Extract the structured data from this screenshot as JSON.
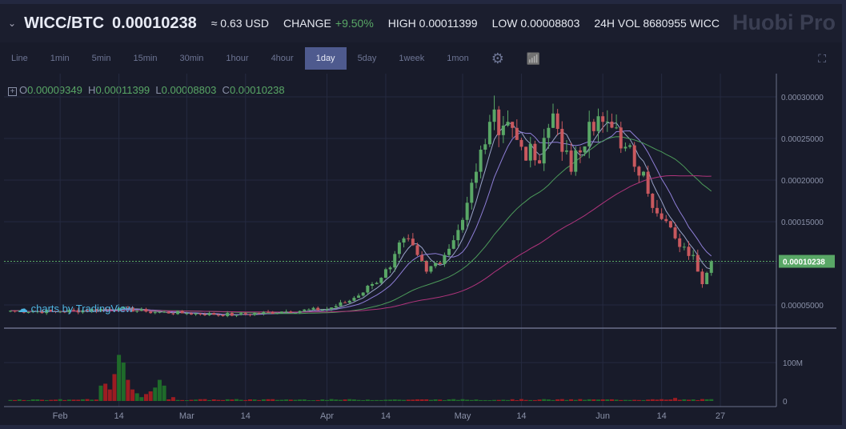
{
  "header": {
    "pair": "WICC/BTC",
    "price": "0.00010238",
    "usd": "≈ 0.63 USD",
    "change_label": "CHANGE",
    "change": "+9.50%",
    "high": "HIGH 0.00011399",
    "low": "LOW 0.00008803",
    "vol": "24H VOL 8680955 WICC",
    "logo": "Huobi Pro"
  },
  "toolbar": {
    "intervals": [
      "Line",
      "1min",
      "5min",
      "15min",
      "30min",
      "1hour",
      "4hour",
      "1day",
      "5day",
      "1week",
      "1mon"
    ],
    "active": "1day"
  },
  "ohlc": {
    "o_label": "O",
    "o": "0.00009349",
    "h_label": "H",
    "h": "0.00011399",
    "l_label": "L",
    "l": "0.00008803",
    "c_label": "C",
    "c": "0.00010238"
  },
  "watermark": "charts by TradingView",
  "chart_data": {
    "type": "candlestick",
    "price_ticks": [
      "0.00030000",
      "0.00025000",
      "0.00020000",
      "0.00015000",
      "0.00005000"
    ],
    "price_tick_values": [
      0.0003,
      0.00025,
      0.0002,
      0.00015,
      5e-05
    ],
    "last_price_label": "0.00010238",
    "last_price": 0.00010238,
    "volume_ticks": [
      "100M",
      "0"
    ],
    "volume_tick_values": [
      100,
      0
    ],
    "x_ticks": [
      "Feb",
      "14",
      "Mar",
      "14",
      "Apr",
      "14",
      "May",
      "14",
      "Jun",
      "14",
      "27"
    ],
    "x_tick_days": [
      11,
      24,
      39,
      52,
      70,
      83,
      100,
      113,
      131,
      144,
      157
    ],
    "close_keypoints": [
      [
        0,
        4.3e-05
      ],
      [
        11,
        4.2e-05
      ],
      [
        24,
        4.6e-05
      ],
      [
        30,
        4.2e-05
      ],
      [
        39,
        4e-05
      ],
      [
        50,
        3.8e-05
      ],
      [
        60,
        4.2e-05
      ],
      [
        70,
        4.5e-05
      ],
      [
        75,
        5.5e-05
      ],
      [
        80,
        7.5e-05
      ],
      [
        84,
        9.5e-05
      ],
      [
        87,
        0.00013
      ],
      [
        90,
        0.00011
      ],
      [
        92,
        9e-05
      ],
      [
        96,
        0.00011
      ],
      [
        99,
        0.00014
      ],
      [
        103,
        0.00021
      ],
      [
        106,
        0.00027
      ],
      [
        110,
        0.00027
      ],
      [
        113,
        0.00024
      ],
      [
        117,
        0.00022
      ],
      [
        120,
        0.00028
      ],
      [
        124,
        0.00021
      ],
      [
        128,
        0.00027
      ],
      [
        131,
        0.00027
      ],
      [
        136,
        0.00024
      ],
      [
        140,
        0.00021
      ],
      [
        143,
        0.00016
      ],
      [
        147,
        0.00013
      ],
      [
        151,
        0.00011
      ],
      [
        153,
        7.5e-05
      ],
      [
        155,
        0.00010238
      ]
    ],
    "volume_spikes_M": [
      [
        20,
        40
      ],
      [
        21,
        45
      ],
      [
        22,
        30
      ],
      [
        23,
        70
      ],
      [
        24,
        120
      ],
      [
        25,
        100
      ],
      [
        26,
        55
      ],
      [
        27,
        30
      ],
      [
        28,
        20
      ],
      [
        29,
        10
      ],
      [
        30,
        18
      ],
      [
        31,
        25
      ],
      [
        32,
        35
      ],
      [
        33,
        55
      ],
      [
        34,
        40
      ],
      [
        36,
        10
      ],
      [
        147,
        8
      ]
    ],
    "ma_periods": [
      5,
      10,
      30,
      60
    ],
    "colors": {
      "up": "#59a766",
      "down": "#c8585e",
      "vol_up": "#1f6b2a",
      "vol_down": "#9c1c22",
      "ma": [
        "#9aa3c8",
        "#8f7fd8",
        "#4c9a5a",
        "#b0347c"
      ]
    }
  }
}
